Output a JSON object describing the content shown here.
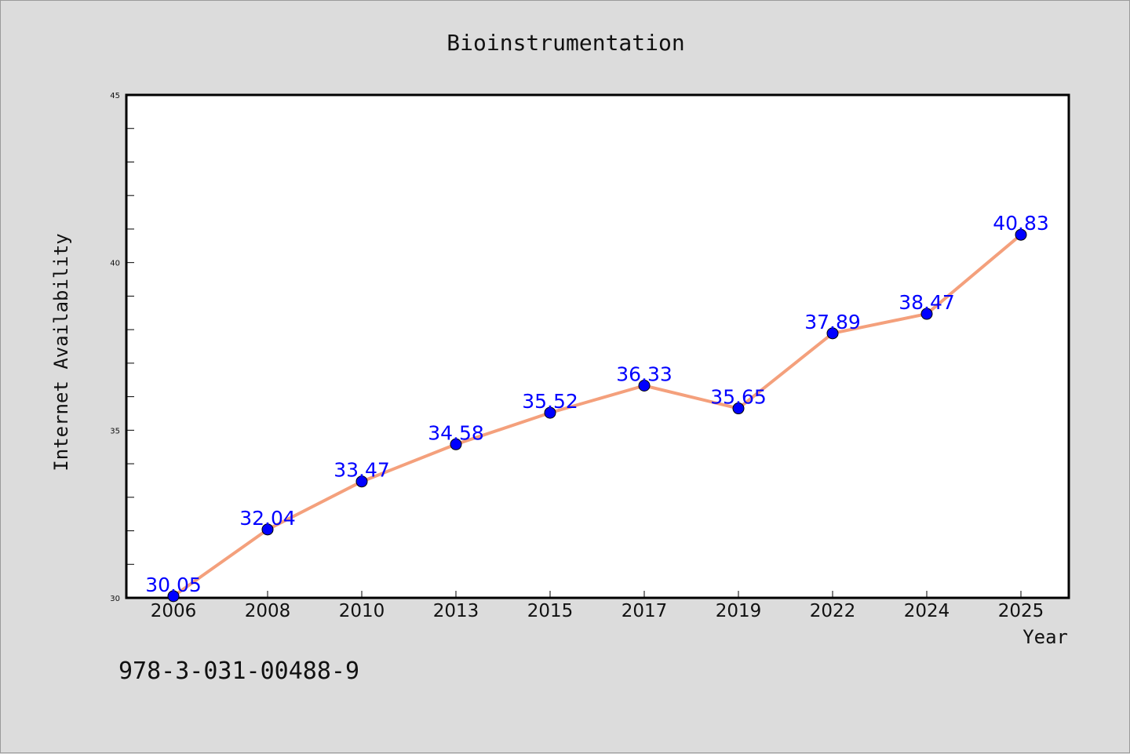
{
  "chart_data": {
    "type": "line",
    "title": "Bioinstrumentation",
    "xlabel": "Year",
    "ylabel": "Internet Availability",
    "categories": [
      "2006",
      "2008",
      "2010",
      "2013",
      "2015",
      "2017",
      "2019",
      "2022",
      "2024",
      "2025"
    ],
    "series": [
      {
        "values": [
          30.05,
          32.04,
          33.47,
          34.58,
          35.52,
          36.33,
          35.65,
          37.89,
          38.47,
          40.83
        ],
        "labels": [
          "30.05",
          "32.04",
          "33.47",
          "34.58",
          "35.52",
          "36.33",
          "35.65",
          "37.89",
          "38.47",
          "40.83"
        ],
        "line_color": "#f4a07c",
        "marker_color": "#0000ff"
      }
    ],
    "ylim": [
      30,
      45
    ],
    "yticks": [
      "30",
      "35",
      "40",
      "45"
    ],
    "grid": false,
    "legend": "none"
  },
  "footer": {
    "isbn": "978-3-031-00488-9"
  },
  "colors": {
    "background": "#dcdcdc",
    "plot_background": "#ffffff",
    "label_color": "#0000ff"
  }
}
